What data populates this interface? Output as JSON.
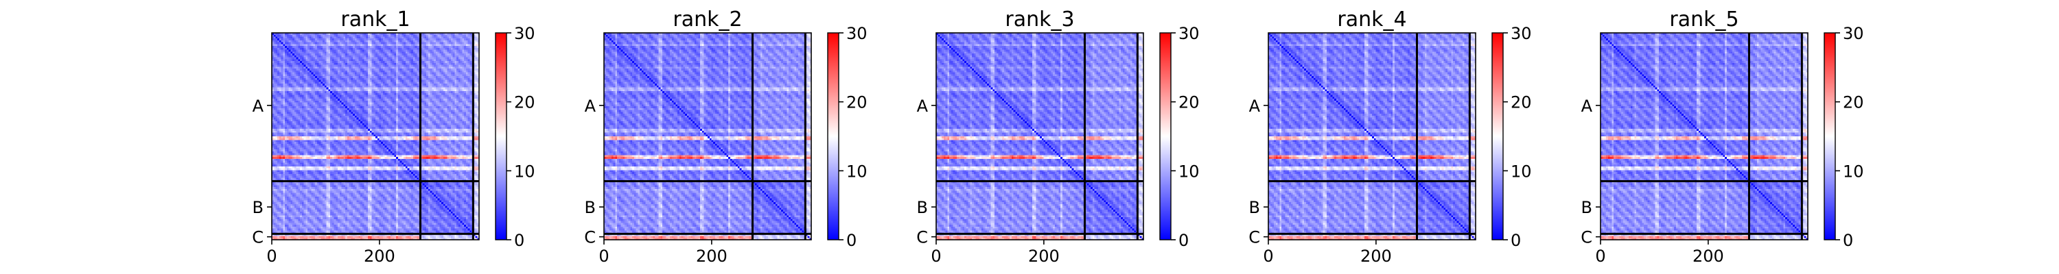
{
  "chart_data": {
    "type": "heatmap",
    "colormap": "bwr",
    "colors": {
      "low": "#0000ff",
      "mid": "#ffffff",
      "high": "#ff0000"
    },
    "n_residues": 385,
    "x_ticks": [
      {
        "value": 0,
        "label": "0"
      },
      {
        "value": 200,
        "label": "200"
      }
    ],
    "y_ticks": [
      {
        "value": 135,
        "label": "A"
      },
      {
        "value": 324,
        "label": "B"
      },
      {
        "value": 379.5,
        "label": "C"
      }
    ],
    "chain_boundaries": [
      276,
      374
    ],
    "colorbar": {
      "min": 0,
      "max": 30,
      "ticks": [
        {
          "value": 0,
          "label": "0"
        },
        {
          "value": 10,
          "label": "10"
        },
        {
          "value": 20,
          "label": "20"
        },
        {
          "value": 30,
          "label": "30"
        }
      ]
    },
    "panels": [
      {
        "title": "rank_1"
      },
      {
        "title": "rank_2"
      },
      {
        "title": "rank_3"
      },
      {
        "title": "rank_4"
      },
      {
        "title": "rank_5"
      }
    ]
  }
}
